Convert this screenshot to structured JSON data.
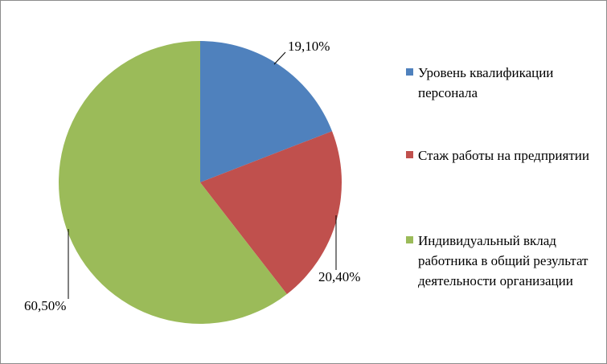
{
  "chart_data": {
    "type": "pie",
    "categories": [
      "Уровень квалификации персонала",
      "Стаж работы на предприятии",
      "Индивидуальный вклад работника в общий результат деятельности организации"
    ],
    "values": [
      19.1,
      20.4,
      60.5
    ],
    "value_labels": [
      "19,10%",
      "20,40%",
      "60,50%"
    ],
    "colors": [
      "#4f81bd",
      "#c0504d",
      "#9bbb59"
    ],
    "legend": "right"
  }
}
